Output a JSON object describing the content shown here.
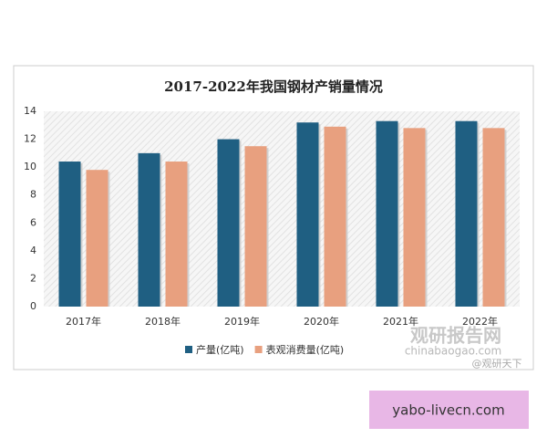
{
  "chart_data": {
    "type": "bar",
    "title": "2017-2022年我国钢材产销量情况",
    "categories": [
      "2017年",
      "2018年",
      "2019年",
      "2020年",
      "2021年",
      "2022年"
    ],
    "series": [
      {
        "name": "产量(亿吨)",
        "color": "#1f5f82",
        "values": [
          10.4,
          11.0,
          12.0,
          13.2,
          13.3,
          13.3
        ]
      },
      {
        "name": "表观消费量(亿吨)",
        "color": "#e8a07f",
        "values": [
          9.8,
          10.4,
          11.5,
          12.9,
          12.8,
          12.8
        ]
      }
    ],
    "ylim": [
      0,
      14
    ],
    "yticks": [
      0,
      2,
      4,
      6,
      8,
      10,
      12,
      14
    ],
    "grid": false,
    "legend": "bottom"
  },
  "watermark": {
    "brand": "观研报告网",
    "url": "chinabaogao.com",
    "handle": "@观研天下"
  },
  "banner": "yabo-livecn.com"
}
